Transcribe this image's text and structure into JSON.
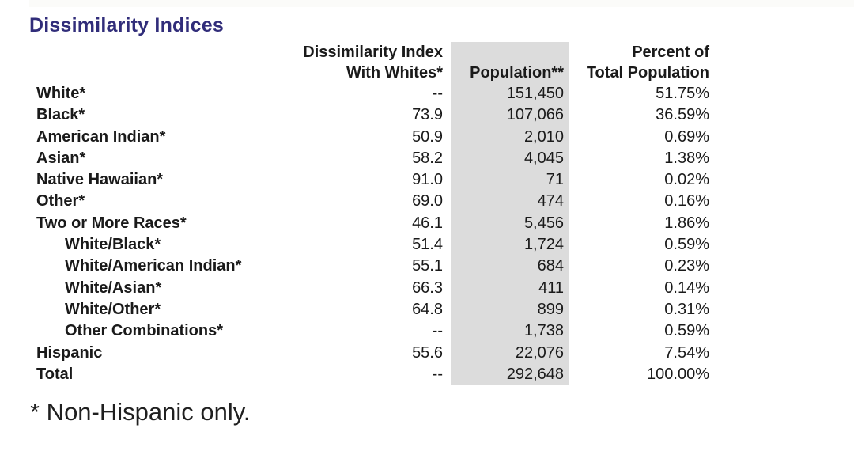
{
  "chart_data": {
    "type": "table",
    "title": "Dissimilarity Indices",
    "footnote": "* Non-Hispanic only.",
    "column_headers": {
      "dissimilarity_line1": "Dissimilarity Index",
      "dissimilarity_line2": "With Whites*",
      "population": "Population**",
      "percent_line1": "Percent of",
      "percent_line2": "Total Population"
    },
    "highlighted_column": "population",
    "rows": [
      {
        "label": "White*",
        "dissimilarity": "--",
        "population": "151,450",
        "percent": "51.75%",
        "indent": false
      },
      {
        "label": "Black*",
        "dissimilarity": "73.9",
        "population": "107,066",
        "percent": "36.59%",
        "indent": false
      },
      {
        "label": "American Indian*",
        "dissimilarity": "50.9",
        "population": "2,010",
        "percent": "0.69%",
        "indent": false
      },
      {
        "label": "Asian*",
        "dissimilarity": "58.2",
        "population": "4,045",
        "percent": "1.38%",
        "indent": false
      },
      {
        "label": "Native Hawaiian*",
        "dissimilarity": "91.0",
        "population": "71",
        "percent": "0.02%",
        "indent": false
      },
      {
        "label": "Other*",
        "dissimilarity": "69.0",
        "population": "474",
        "percent": "0.16%",
        "indent": false
      },
      {
        "label": "Two or More Races*",
        "dissimilarity": "46.1",
        "population": "5,456",
        "percent": "1.86%",
        "indent": false
      },
      {
        "label": "White/Black*",
        "dissimilarity": "51.4",
        "population": "1,724",
        "percent": "0.59%",
        "indent": true
      },
      {
        "label": "White/American Indian*",
        "dissimilarity": "55.1",
        "population": "684",
        "percent": "0.23%",
        "indent": true
      },
      {
        "label": "White/Asian*",
        "dissimilarity": "66.3",
        "population": "411",
        "percent": "0.14%",
        "indent": true
      },
      {
        "label": "White/Other*",
        "dissimilarity": "64.8",
        "population": "899",
        "percent": "0.31%",
        "indent": true
      },
      {
        "label": "Other Combinations*",
        "dissimilarity": "--",
        "population": "1,738",
        "percent": "0.59%",
        "indent": true
      },
      {
        "label": "Hispanic",
        "dissimilarity": "55.6",
        "population": "22,076",
        "percent": "7.54%",
        "indent": false
      },
      {
        "label": "Total",
        "dissimilarity": "--",
        "population": "292,648",
        "percent": "100.00%",
        "indent": false
      }
    ]
  },
  "colors": {
    "title_text": "#312d7a",
    "body_text": "#1a1a1a",
    "population_column_bg": "#dcdcdc",
    "top_strip_bg": "#fbfbf9"
  }
}
